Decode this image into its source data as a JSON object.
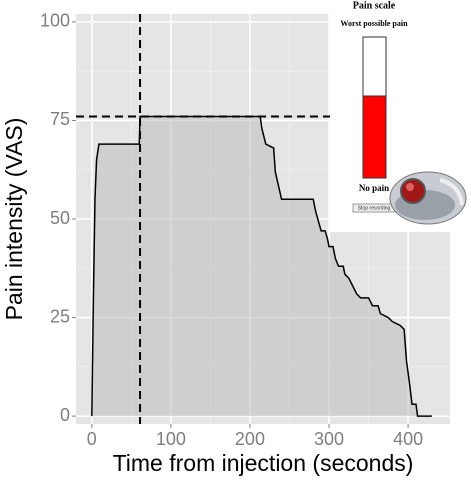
{
  "chart_data": {
    "type": "line",
    "xlabel": "Time from injection (seconds)",
    "ylabel": "Pain intensity (VAS)",
    "x": [
      0,
      2,
      4,
      6,
      9,
      60,
      61,
      213,
      215,
      220,
      230,
      232,
      240,
      280,
      283,
      290,
      295,
      298,
      300,
      305,
      308,
      312,
      318,
      320,
      325,
      330,
      335,
      340,
      350,
      355,
      362,
      365,
      375,
      380,
      390,
      395,
      398,
      402,
      405,
      410,
      412,
      430
    ],
    "values": [
      0,
      30,
      55,
      65,
      69,
      69,
      76,
      76,
      73,
      69,
      68,
      62,
      55,
      55,
      52,
      47,
      47,
      45,
      43,
      43,
      40,
      38,
      38,
      36,
      35,
      33,
      31,
      30,
      30,
      28,
      28,
      26,
      25,
      24,
      23,
      22,
      14,
      8,
      3,
      3,
      0,
      0
    ],
    "color": "#000000",
    "reference_x": 61,
    "reference_y": 76,
    "xlim": [
      -20,
      453
    ],
    "ylim": [
      -2,
      102
    ],
    "xticks": [
      0,
      100,
      200,
      300,
      400
    ],
    "yticks": [
      0,
      25,
      50,
      75,
      100
    ],
    "grid": true
  },
  "inset": {
    "title": "Pain scale",
    "top_label": "Worst possible pain",
    "bottom_label": "No pain",
    "button": "Stop recording"
  }
}
